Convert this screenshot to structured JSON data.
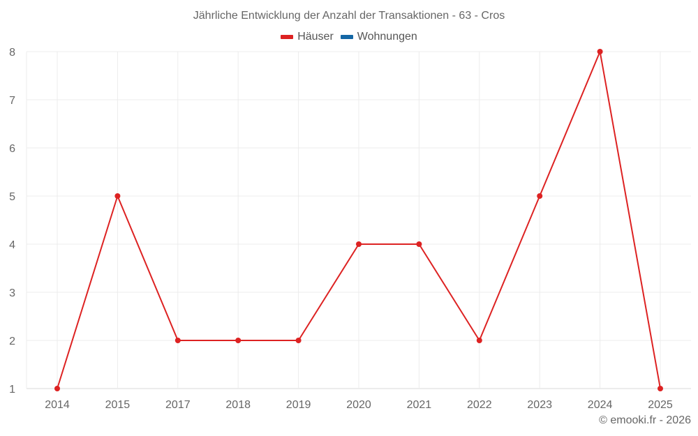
{
  "chart_data": {
    "type": "line",
    "title": "Jährliche Entwicklung der Anzahl der Transaktionen - 63 - Cros",
    "categories": [
      "2014",
      "2015",
      "2017",
      "2018",
      "2019",
      "2020",
      "2021",
      "2022",
      "2023",
      "2024",
      "2025"
    ],
    "series": [
      {
        "name": "Häuser",
        "color": "#dd2222",
        "values": [
          1,
          5,
          2,
          2,
          2,
          4,
          4,
          2,
          5,
          8,
          1
        ]
      },
      {
        "name": "Wohnungen",
        "color": "#1467a5",
        "values": []
      }
    ],
    "xlabel": "",
    "ylabel": "",
    "yticks": [
      1,
      2,
      3,
      4,
      5,
      6,
      7,
      8
    ],
    "ylim": [
      1,
      8
    ],
    "grid": true,
    "legend_position": "top-center"
  },
  "legend": {
    "items": [
      {
        "label": "Häuser",
        "color": "#dd2222"
      },
      {
        "label": "Wohnungen",
        "color": "#1467a5"
      }
    ]
  },
  "footer": {
    "credit": "© emooki.fr - 2026"
  }
}
